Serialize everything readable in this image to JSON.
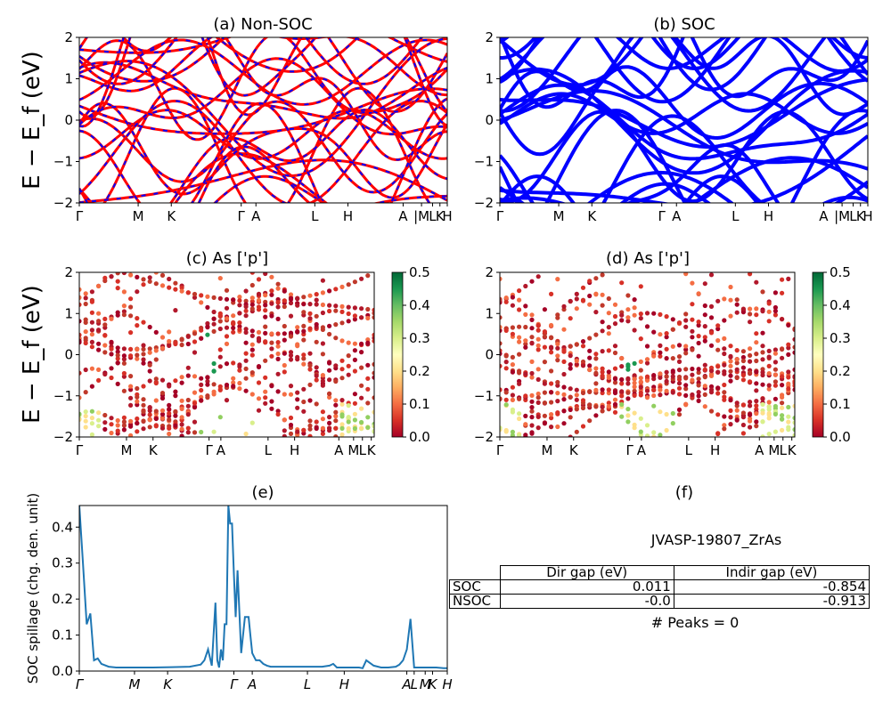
{
  "figure_title": "",
  "chart_data": [
    {
      "id": "a",
      "type": "line",
      "title": "(a) Non-SOC",
      "ylabel": "E − E_f (eV)",
      "ylim": [
        -2,
        2
      ],
      "yticks": [
        "−2",
        "−1",
        "0",
        "1",
        "2"
      ],
      "xticks": [
        "Γ",
        "M",
        "K",
        "Γ",
        "A",
        "L",
        "H",
        "A",
        "|M",
        "L",
        "K",
        "H"
      ],
      "series": [
        {
          "style": "red solid with blue dashes",
          "color": "#ff0000",
          "dash_color": "#0000ff"
        }
      ]
    },
    {
      "id": "b",
      "type": "line",
      "title": "(b) SOC",
      "ylim": [
        -2,
        2
      ],
      "yticks": [
        "−2",
        "−1",
        "0",
        "1",
        "2"
      ],
      "xticks": [
        "Γ",
        "M",
        "K",
        "Γ",
        "A",
        "L",
        "H",
        "A",
        "|M",
        "L",
        "K",
        "H"
      ],
      "series": [
        {
          "style": "blue solid",
          "color": "#0000ff"
        }
      ]
    },
    {
      "id": "c",
      "type": "scatter",
      "title": "(c)  As ['p']",
      "ylabel": "E − E_f (eV)",
      "ylim": [
        -2,
        2
      ],
      "yticks": [
        "−2",
        "−1",
        "0",
        "1",
        "2"
      ],
      "xticks": [
        "Γ",
        "M",
        "K",
        "Γ",
        "A",
        "L",
        "H",
        "A",
        "M",
        "L",
        "K"
      ],
      "colorbar": {
        "range": [
          0.0,
          0.5
        ],
        "ticks": [
          "0.0",
          "0.1",
          "0.2",
          "0.3",
          "0.4",
          "0.5"
        ],
        "colormap": "RdYlGn"
      }
    },
    {
      "id": "d",
      "type": "scatter",
      "title": "(d) As ['p']",
      "ylim": [
        -2,
        2
      ],
      "yticks": [
        "−2",
        "−1",
        "0",
        "1",
        "2"
      ],
      "xticks": [
        "Γ",
        "M",
        "K",
        "Γ",
        "A",
        "L",
        "H",
        "A",
        "M",
        "L",
        "K"
      ],
      "colorbar": {
        "range": [
          0.0,
          0.5
        ],
        "ticks": [
          "0.0",
          "0.1",
          "0.2",
          "0.3",
          "0.4",
          "0.5"
        ],
        "colormap": "RdYlGn"
      }
    },
    {
      "id": "e",
      "type": "line",
      "title": "(e)",
      "ylabel": "SOC spillage (chg. den. unit)",
      "ylim": [
        0,
        0.46
      ],
      "yticks": [
        "0.0",
        "0.1",
        "0.2",
        "0.3",
        "0.4"
      ],
      "xticks": [
        "Γ",
        "M",
        "K",
        "Γ",
        "A",
        "L",
        "H",
        "A",
        "L",
        "M",
        "K",
        "H"
      ],
      "series": [
        {
          "color": "#1f77b4",
          "x": [
            0,
            0.01,
            0.02,
            0.03,
            0.04,
            0.05,
            0.06,
            0.08,
            0.1,
            0.15,
            0.2,
            0.25,
            0.3,
            0.33,
            0.34,
            0.35,
            0.36,
            0.37,
            0.375,
            0.38,
            0.385,
            0.39,
            0.395,
            0.4,
            0.405,
            0.41,
            0.415,
            0.42,
            0.425,
            0.43,
            0.44,
            0.45,
            0.46,
            0.465,
            0.47,
            0.48,
            0.49,
            0.5,
            0.51,
            0.52,
            0.53,
            0.54,
            0.55,
            0.56,
            0.57,
            0.58,
            0.6,
            0.62,
            0.64,
            0.66,
            0.68,
            0.69,
            0.7,
            0.72,
            0.74,
            0.76,
            0.77,
            0.78,
            0.8,
            0.82,
            0.84,
            0.86,
            0.87,
            0.88,
            0.89,
            0.9,
            0.91,
            0.92,
            0.93,
            0.95,
            0.97,
            0.99,
            1.0
          ],
          "y": [
            0.46,
            0.3,
            0.13,
            0.16,
            0.03,
            0.035,
            0.02,
            0.012,
            0.01,
            0.01,
            0.01,
            0.011,
            0.012,
            0.018,
            0.03,
            0.06,
            0.015,
            0.19,
            0.03,
            0.01,
            0.06,
            0.03,
            0.13,
            0.13,
            0.46,
            0.41,
            0.41,
            0.27,
            0.15,
            0.28,
            0.05,
            0.15,
            0.15,
            0.1,
            0.05,
            0.03,
            0.03,
            0.02,
            0.015,
            0.012,
            0.012,
            0.012,
            0.012,
            0.012,
            0.012,
            0.012,
            0.012,
            0.012,
            0.012,
            0.012,
            0.015,
            0.02,
            0.01,
            0.01,
            0.01,
            0.01,
            0.008,
            0.03,
            0.015,
            0.01,
            0.01,
            0.012,
            0.018,
            0.03,
            0.06,
            0.145,
            0.01,
            0.01,
            0.01,
            0.01,
            0.01,
            0.008,
            0.008
          ]
        }
      ]
    }
  ],
  "panel_f": {
    "title": "(f)",
    "material": "JVASP-19807_ZrAs",
    "table": {
      "headers": [
        "Dir gap (eV)",
        "Indir gap (eV)"
      ],
      "rows": [
        {
          "label": "SOC",
          "dir": "0.011",
          "indir": "-0.854"
        },
        {
          "label": "NSOC",
          "dir": "-0.0",
          "indir": "-0.913"
        }
      ]
    },
    "peaks": "# Peaks = 0"
  }
}
